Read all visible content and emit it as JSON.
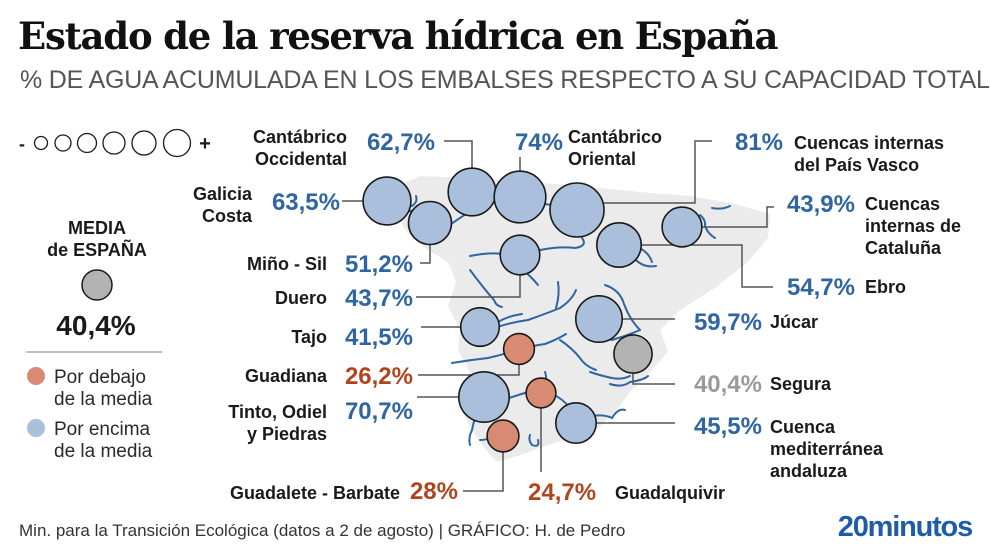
{
  "header": {
    "title": "Estado de la reserva hídrica en España",
    "subtitle": "% DE AGUA ACUMULADA EN LOS EMBALSES RESPECTO A SU CAPACIDAD TOTAL"
  },
  "legend": {
    "size_min_symbol": "-",
    "size_max_symbol": "+",
    "media_title_line1": "MEDIA",
    "media_title_line2": "de ESPAÑA",
    "media_value": "40,4%",
    "below_line1": "Por debajo",
    "below_line2": "de la media",
    "above_line1": "Por encima",
    "above_line2": "de la media"
  },
  "colors": {
    "above": "#a9bfdb",
    "below": "#d98a72",
    "average": "#b3b3b3",
    "value_above": "#2f65a3",
    "value_below": "#b1441f",
    "value_average": "#9a9a9a",
    "river": "#2f65a3",
    "land": "#ebebeb",
    "brand": "#1f5ca8"
  },
  "chart_data": {
    "type": "bubble-map",
    "title": "Estado de la reserva hídrica en España",
    "subtitle": "% DE AGUA ACUMULADA EN LOS EMBALSES RESPECTO A SU CAPACIDAD TOTAL",
    "unit": "%",
    "average": {
      "label": "MEDIA de ESPAÑA",
      "value": 40.4,
      "display": "40,4%"
    },
    "series": [
      {
        "name": "Galicia Costa",
        "lines": [
          "Galicia",
          "Costa"
        ],
        "value": 63.5,
        "display": "63,5%",
        "status": "above"
      },
      {
        "name": "Cantábrico Occidental",
        "lines": [
          "Cantábrico",
          "Occidental"
        ],
        "value": 62.7,
        "display": "62,7%",
        "status": "above"
      },
      {
        "name": "Cantábrico Oriental",
        "lines": [
          "Cantábrico",
          "Oriental"
        ],
        "value": 74,
        "display": "74%",
        "status": "above"
      },
      {
        "name": "Cuencas internas del País Vasco",
        "lines": [
          "Cuencas internas",
          "del País Vasco"
        ],
        "value": 81,
        "display": "81%",
        "status": "above"
      },
      {
        "name": "Cuencas internas de Cataluña",
        "lines": [
          "Cuencas",
          "internas de",
          "Cataluña"
        ],
        "value": 43.9,
        "display": "43,9%",
        "status": "above"
      },
      {
        "name": "Miño - Sil",
        "lines": [
          "Miño - Sil"
        ],
        "value": 51.2,
        "display": "51,2%",
        "status": "above"
      },
      {
        "name": "Ebro",
        "lines": [
          "Ebro"
        ],
        "value": 54.7,
        "display": "54,7%",
        "status": "above"
      },
      {
        "name": "Duero",
        "lines": [
          "Duero"
        ],
        "value": 43.7,
        "display": "43,7%",
        "status": "above"
      },
      {
        "name": "Tajo",
        "lines": [
          "Tajo"
        ],
        "value": 41.5,
        "display": "41,5%",
        "status": "above"
      },
      {
        "name": "Júcar",
        "lines": [
          "Júcar"
        ],
        "value": 59.7,
        "display": "59,7%",
        "status": "above"
      },
      {
        "name": "Guadiana",
        "lines": [
          "Guadiana"
        ],
        "value": 26.2,
        "display": "26,2%",
        "status": "below"
      },
      {
        "name": "Segura",
        "lines": [
          "Segura"
        ],
        "value": 40.4,
        "display": "40,4%",
        "status": "average"
      },
      {
        "name": "Tinto, Odiel y Piedras",
        "lines": [
          "Tinto, Odiel",
          "y Piedras"
        ],
        "value": 70.7,
        "display": "70,7%",
        "status": "above"
      },
      {
        "name": "Cuenca mediterránea andaluza",
        "lines": [
          "Cuenca",
          "mediterránea",
          "andaluza"
        ],
        "value": 45.5,
        "display": "45,5%",
        "status": "above"
      },
      {
        "name": "Guadalete - Barbate",
        "lines": [
          "Guadalete - Barbate"
        ],
        "value": 28,
        "display": "28%",
        "status": "below"
      },
      {
        "name": "Guadalquivir",
        "lines": [
          "Guadalquivir"
        ],
        "value": 24.7,
        "display": "24,7%",
        "status": "below"
      }
    ]
  },
  "footer": {
    "source": "Min. para la Transición Ecológica (datos a 2 de agosto)  |  GRÁFICO: H. de Pedro",
    "brand": "20minutos"
  }
}
